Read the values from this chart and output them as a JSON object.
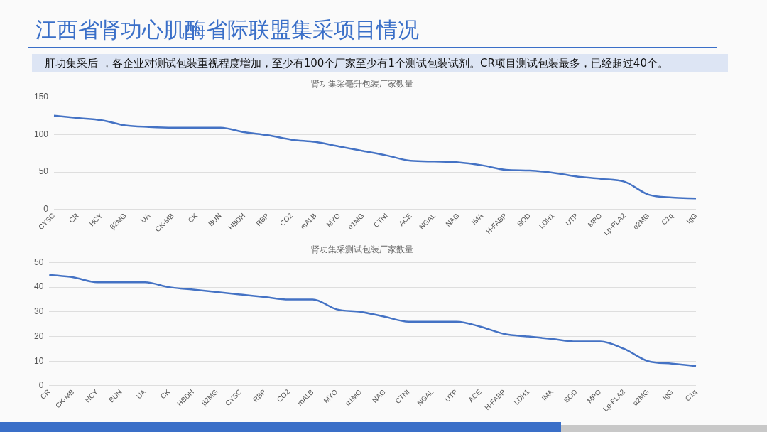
{
  "chart_data": [
    {
      "type": "line",
      "title": "肾功集采毫升包装厂家数量",
      "annotations": [
        "江西省肾功心肌酶省际联盟集采项目情况",
        "肝功集采后 ，各企业对测试包装重视程度增加，至少有100个厂家至少有1个测试包装试剂。CR项目测试包装最多，已经超过40个。"
      ],
      "categories": [
        "CYSC",
        "CR",
        "HCY",
        "β2MG",
        "UA",
        "CK-MB",
        "CK",
        "BUN",
        "HBDH",
        "RBP",
        "CO2",
        "mALB",
        "MYO",
        "α1MG",
        "CTNI",
        "ACE",
        "NGAL",
        "NAG",
        "IMA",
        "H-FABP",
        "SOD",
        "LDH1",
        "UTP",
        "MPO",
        "Lp-PLA2",
        "α2MG",
        "C1q",
        "IgG"
      ],
      "series": [
        {
          "color": "#4472c4",
          "values": [
            125,
            122,
            119,
            112,
            110,
            109,
            109,
            109,
            103,
            99,
            93,
            90,
            84,
            78,
            72,
            65,
            64,
            63,
            59,
            53,
            52,
            49,
            44,
            41,
            37,
            20,
            16,
            15
          ]
        }
      ],
      "ylim": [
        0,
        150
      ],
      "yticks": [
        0,
        50,
        100,
        150
      ],
      "grid": "y",
      "legend": false,
      "marker": "none",
      "line_style": "solid"
    },
    {
      "type": "line",
      "title": "肾功集采测试包装厂家数量",
      "categories": [
        "CR",
        "CK-MB",
        "HCY",
        "BUN",
        "UA",
        "CK",
        "HBDH",
        "β2MG",
        "CYSC",
        "RBP",
        "CO2",
        "mALB",
        "MYO",
        "α1MG",
        "NAG",
        "CTNI",
        "NGAL",
        "UTP",
        "ACE",
        "H-FABP",
        "LDH1",
        "IMA",
        "SOD",
        "MPO",
        "Lp-PLA2",
        "α2MG",
        "IgG",
        "C1q"
      ],
      "series": [
        {
          "color": "#4472c4",
          "values": [
            45,
            44,
            42,
            42,
            42,
            40,
            39,
            38,
            37,
            36,
            35,
            35,
            31,
            30,
            28,
            26,
            26,
            26,
            24,
            21,
            20,
            19,
            18,
            18,
            15,
            10,
            9,
            8
          ]
        }
      ],
      "ylim": [
        0,
        50
      ],
      "yticks": [
        0,
        10,
        20,
        30,
        40,
        50
      ],
      "grid": "y",
      "legend": false,
      "marker": "none",
      "line_style": "solid"
    }
  ]
}
